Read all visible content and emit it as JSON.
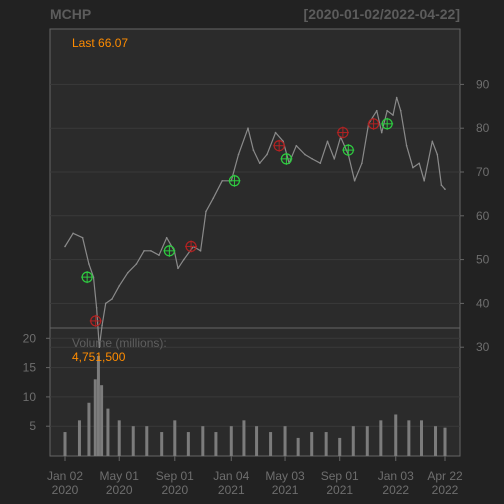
{
  "header": {
    "symbol": "MCHP",
    "date_range": "[2020-01-02/2022-04-22]"
  },
  "price_panel": {
    "last_label": "Last 66.07",
    "y_ticks": [
      30,
      40,
      50,
      60,
      70,
      80,
      90
    ]
  },
  "volume_panel": {
    "title": "Volume (millions):",
    "value": "4,751,500",
    "y_ticks": [
      5,
      10,
      15,
      20
    ]
  },
  "x_ticks": [
    {
      "line1": "Jan 02",
      "line2": "2020",
      "date": "2020-01-02"
    },
    {
      "line1": "May 01",
      "line2": "2020",
      "date": "2020-05-01"
    },
    {
      "line1": "Sep 01",
      "line2": "2020",
      "date": "2020-09-01"
    },
    {
      "line1": "Jan 04",
      "line2": "2021",
      "date": "2021-01-04"
    },
    {
      "line1": "May 03",
      "line2": "2021",
      "date": "2021-05-03"
    },
    {
      "line1": "Sep 01",
      "line2": "2021",
      "date": "2021-09-01"
    },
    {
      "line1": "Jan 03",
      "line2": "2022",
      "date": "2022-01-03"
    },
    {
      "line1": "Apr 22",
      "line2": "2022",
      "date": "2022-04-22"
    }
  ],
  "colors": {
    "background": "#222222",
    "panel": "#2b2b2b",
    "price_line": "#8a8a8a",
    "volume_bars": "#7c7c7c",
    "axis_text": "#6e6e6e",
    "last_text": "#ff8c00",
    "buy_marker": "#2ecc40",
    "sell_marker": "#b22222"
  },
  "chart_data": {
    "type": "line",
    "title": "MCHP",
    "x_range": [
      "2020-01-02",
      "2022-04-22"
    ],
    "ylim": [
      25,
      92
    ],
    "price_series": {
      "dates": [
        "2020-01-02",
        "2020-01-20",
        "2020-02-10",
        "2020-02-24",
        "2020-03-05",
        "2020-03-12",
        "2020-03-18",
        "2020-03-24",
        "2020-04-01",
        "2020-04-15",
        "2020-05-01",
        "2020-05-20",
        "2020-06-08",
        "2020-06-25",
        "2020-07-10",
        "2020-07-28",
        "2020-08-14",
        "2020-08-31",
        "2020-09-08",
        "2020-09-21",
        "2020-10-12",
        "2020-10-28",
        "2020-11-09",
        "2020-11-25",
        "2020-12-15",
        "2021-01-04",
        "2021-01-20",
        "2021-02-10",
        "2021-02-22",
        "2021-03-08",
        "2021-03-24",
        "2021-04-12",
        "2021-04-29",
        "2021-05-12",
        "2021-05-28",
        "2021-06-16",
        "2021-07-02",
        "2021-07-20",
        "2021-08-05",
        "2021-08-20",
        "2021-09-03",
        "2021-09-20",
        "2021-10-04",
        "2021-10-20",
        "2021-11-04",
        "2021-11-22",
        "2021-12-03",
        "2021-12-15",
        "2021-12-28",
        "2022-01-05",
        "2022-01-14",
        "2022-01-27",
        "2022-02-10",
        "2022-02-24",
        "2022-03-07",
        "2022-03-25",
        "2022-04-05",
        "2022-04-14",
        "2022-04-22"
      ],
      "values": [
        53,
        56,
        55,
        49,
        46,
        39,
        30,
        35,
        40,
        41,
        44,
        47,
        49,
        52,
        52,
        51,
        55,
        52,
        48,
        50,
        53,
        52,
        61,
        64,
        68,
        68,
        74,
        80,
        75,
        72,
        74,
        79,
        77,
        72,
        76,
        74,
        73,
        72,
        77,
        73,
        78,
        74,
        68,
        72,
        81,
        84,
        79,
        84,
        83,
        87,
        84,
        76,
        71,
        72,
        68,
        77,
        74,
        67,
        66.07
      ]
    },
    "volume_series": {
      "unit": "millions",
      "ylim": [
        0,
        21
      ],
      "dates": [
        "2020-01-02",
        "2020-02-03",
        "2020-02-24",
        "2020-03-09",
        "2020-03-16",
        "2020-03-23",
        "2020-04-06",
        "2020-05-01",
        "2020-06-01",
        "2020-07-01",
        "2020-08-03",
        "2020-09-01",
        "2020-10-01",
        "2020-11-02",
        "2020-12-01",
        "2021-01-04",
        "2021-02-01",
        "2021-03-01",
        "2021-04-01",
        "2021-05-03",
        "2021-06-01",
        "2021-07-01",
        "2021-08-02",
        "2021-09-01",
        "2021-10-01",
        "2021-11-01",
        "2021-12-01",
        "2022-01-03",
        "2022-02-01",
        "2022-03-01",
        "2022-04-01",
        "2022-04-22"
      ],
      "values": [
        4,
        6,
        9,
        13,
        17,
        12,
        8,
        6,
        5,
        5,
        4,
        6,
        4,
        5,
        4,
        5,
        6,
        5,
        4,
        5,
        3,
        4,
        4,
        3,
        5,
        5,
        6,
        7,
        6,
        6,
        5,
        4.75
      ]
    },
    "signals": [
      {
        "date": "2020-02-20",
        "price": 46,
        "type": "buy"
      },
      {
        "date": "2020-03-10",
        "price": 36,
        "type": "sell"
      },
      {
        "date": "2020-08-20",
        "price": 52,
        "type": "buy"
      },
      {
        "date": "2020-10-07",
        "price": 53,
        "type": "sell"
      },
      {
        "date": "2021-01-11",
        "price": 68,
        "type": "buy"
      },
      {
        "date": "2021-04-20",
        "price": 76,
        "type": "sell"
      },
      {
        "date": "2021-05-06",
        "price": 73,
        "type": "buy"
      },
      {
        "date": "2021-09-08",
        "price": 79,
        "type": "sell"
      },
      {
        "date": "2021-09-20",
        "price": 75,
        "type": "buy"
      },
      {
        "date": "2021-11-15",
        "price": 81,
        "type": "sell"
      },
      {
        "date": "2021-12-15",
        "price": 81,
        "type": "buy"
      }
    ]
  }
}
